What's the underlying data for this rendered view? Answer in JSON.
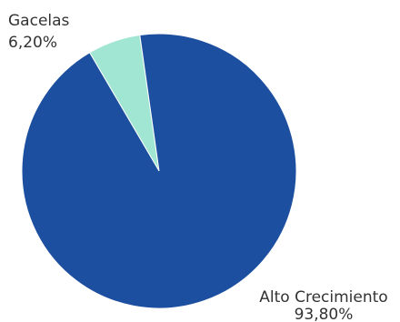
{
  "chart_data": {
    "type": "pie",
    "slices": [
      {
        "label": "Gacelas",
        "value": 6.2,
        "value_label": "6,20%",
        "color": "#a0e6d3"
      },
      {
        "label": "Alto Crecimiento",
        "value": 93.8,
        "value_label": "93,80%",
        "color": "#1c4f9f"
      }
    ],
    "legend": "none",
    "labels": "outside"
  }
}
